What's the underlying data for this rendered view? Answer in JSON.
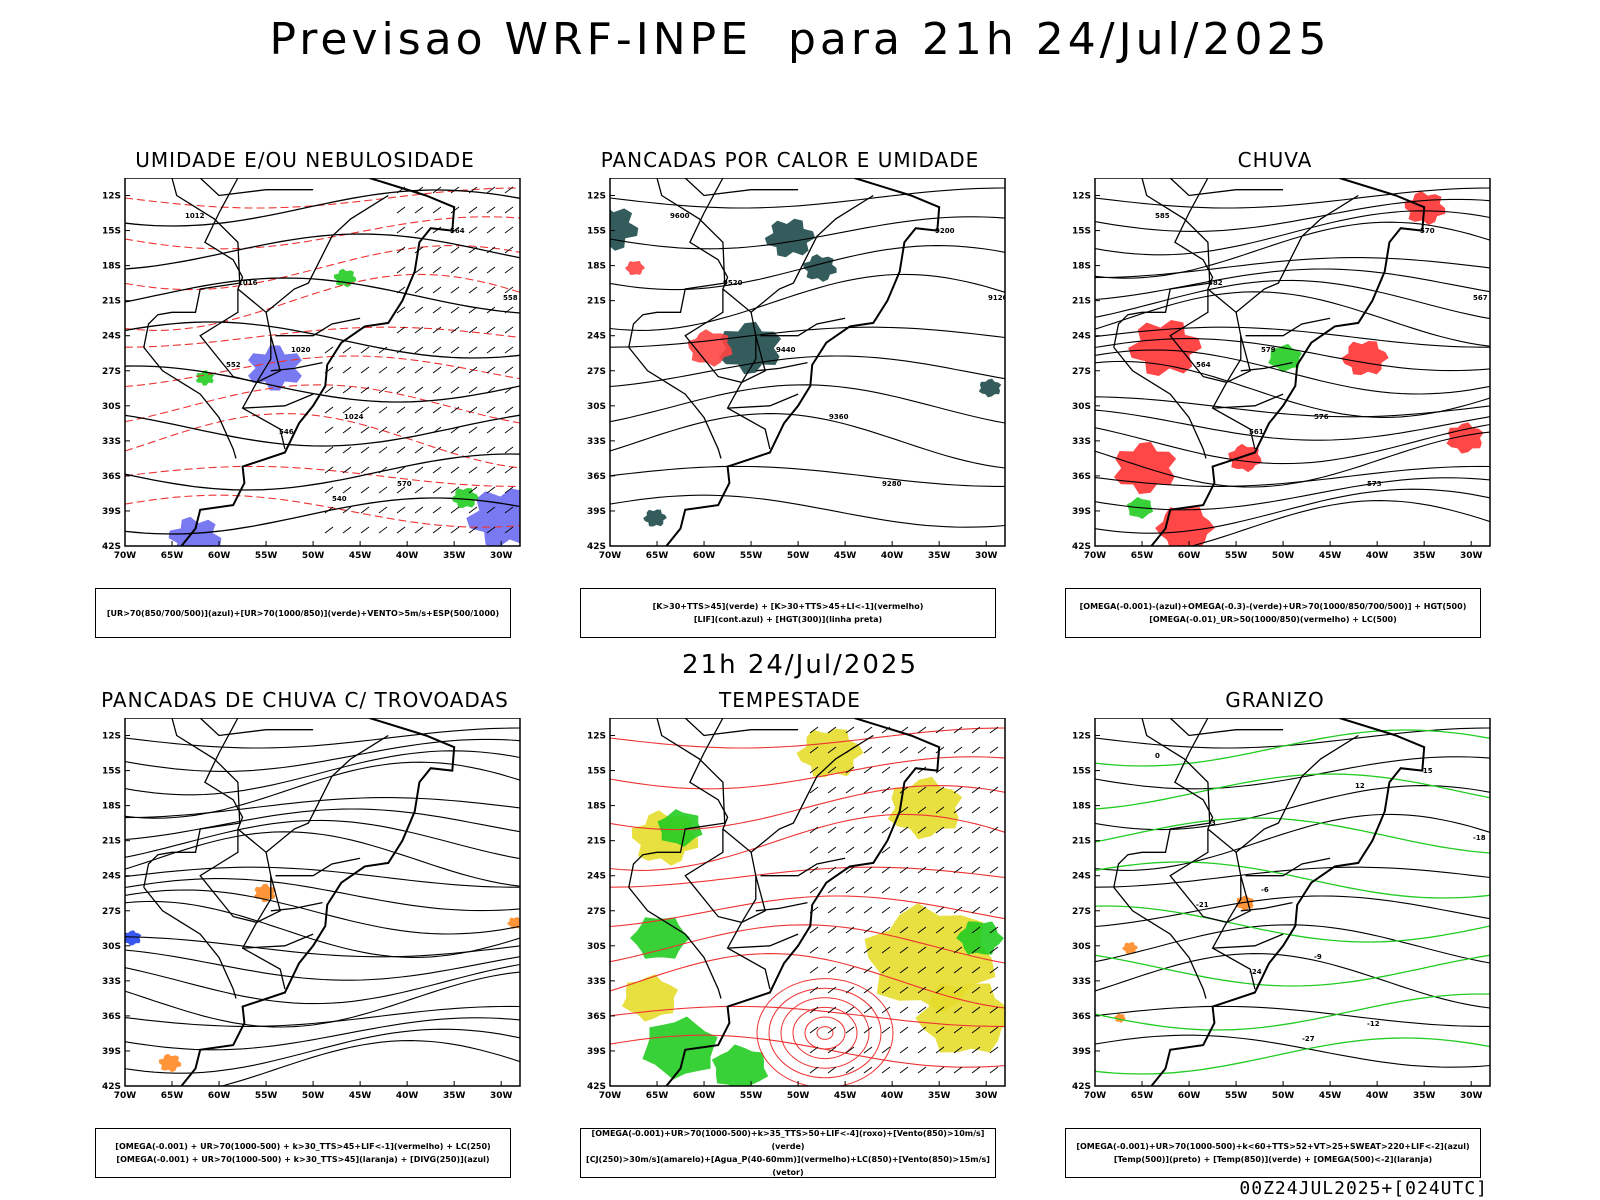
{
  "main_title": "Previsao WRF-INPE  para 21h 24/Jul/2025",
  "mid_title": "21h 24/Jul/2025",
  "footer": "00Z24JUL2025+[024UTC]",
  "axes": {
    "lat_labels": [
      "12S",
      "15S",
      "18S",
      "21S",
      "24S",
      "27S",
      "30S",
      "33S",
      "36S",
      "39S",
      "42S"
    ],
    "lon_labels": [
      "70W",
      "65W",
      "60W",
      "55W",
      "50W",
      "45W",
      "40W",
      "35W",
      "30W"
    ]
  },
  "panels": [
    {
      "title": "UMIDADE E/OU NEBULOSIDADE",
      "legend": [
        "[UR>70(850/700/500)](azul)+[UR>70(1000/850)](verde)+VENTO>5m/s+ESP(500/1000)"
      ],
      "colors": {
        "primary": "#22cc22",
        "secondary": "#6a6af0",
        "contour": "#ee3333"
      },
      "labels": [
        "1012",
        "1016",
        "1020",
        "1024",
        "570",
        "564",
        "558",
        "552",
        "546",
        "540"
      ]
    },
    {
      "title": "PANCADAS POR CALOR E UMIDADE",
      "legend": [
        "[K>30+TTS>45](verde) + [K>30+TTS>45+LI<-1](vermelho)",
        "[LIF](cont.azul) + [HGT(300)](linha preta)"
      ],
      "colors": {
        "primary": "#1e4a4a",
        "secondary": "#ff4444",
        "contour": "#2222dd"
      },
      "labels": [
        "9600",
        "9520",
        "9440",
        "9360",
        "9280",
        "9200",
        "9120"
      ]
    },
    {
      "title": "CHUVA",
      "legend": [
        "[OMEGA(-0.001)-(azul)+OMEGA(-0.3)-(verde)+UR>70(1000/850/700/500)] + HGT(500)",
        "[OMEGA(-0.01)_UR>50(1000/850)(vermelho) + LC(500)"
      ],
      "colors": {
        "primary": "#ff3333",
        "secondary": "#22cc22",
        "contour": "#2244ee"
      },
      "labels": [
        "585",
        "582",
        "579",
        "576",
        "573",
        "570",
        "567",
        "564",
        "561"
      ]
    },
    {
      "title": "PANCADAS DE CHUVA C/ TROVOADAS",
      "legend": [
        "[OMEGA(-0.001) + UR>70(1000-500) + k>30_TTS>45+LIF<-1](vermelho) + LC(250)",
        "[OMEGA(-0.001) + UR>70(1000-500) + k>30_TTS>45](laranja) + [DIVG(250)](azul)"
      ],
      "colors": {
        "primary": "#ff8822",
        "secondary": "#2244ee",
        "contour": "#000000"
      },
      "labels": []
    },
    {
      "title": "TEMPESTADE",
      "legend": [
        "[OMEGA(-0.001)+UR>70(1000-500)+k>35_TTS>50+LIF<-4](roxo)+[Vento(850)>10m/s](verde)",
        "[CJ(250)>30m/s](amarelo)+[Agua_P(40-60mm)](vermelho)+LC(850)+[Vento(850)>15m/s](vetor)"
      ],
      "colors": {
        "primary": "#e6dc2c",
        "secondary": "#22cc22",
        "contour": "#ee3333"
      },
      "labels": []
    },
    {
      "title": "GRANIZO",
      "legend": [
        "[OMEGA(-0.001)+UR>70(1000-500)+k<60+TTS>52+VT>25+SWEAT>220+LIF<-2](azul)",
        "[Temp(500)](preto) + [Temp(850)](verde) + [OMEGA(500)<-2](laranja)"
      ],
      "colors": {
        "primary": "#22cc22",
        "secondary": "#ff8822",
        "contour": "#000000"
      },
      "labels": [
        "0",
        "-3",
        "-6",
        "-9",
        "-12",
        "-15",
        "-18",
        "-21",
        "-24",
        "-27",
        "12"
      ]
    }
  ]
}
